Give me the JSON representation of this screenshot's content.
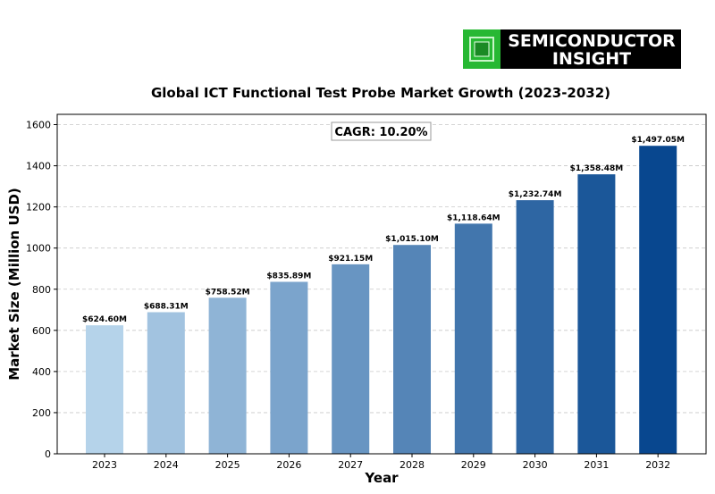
{
  "logo": {
    "line1": "SEMICONDUCTOR",
    "line2": "INSIGHT"
  },
  "annotation": {
    "cagr": "CAGR: 10.20%"
  },
  "colors": {
    "bar_start": "#b5d3ea",
    "bar_end": "#08478f",
    "grid": "#c8c8c8",
    "logo_bg": "#000000",
    "logo_chip": "#27b833"
  },
  "chart_data": {
    "type": "bar",
    "title": "Global ICT Functional Test Probe Market Growth (2023-2032)",
    "xlabel": "Year",
    "ylabel": "Market Size (Million USD)",
    "categories": [
      "2023",
      "2024",
      "2025",
      "2026",
      "2027",
      "2028",
      "2029",
      "2030",
      "2031",
      "2032"
    ],
    "values": [
      624.6,
      688.31,
      758.52,
      835.89,
      921.15,
      1015.1,
      1118.64,
      1232.74,
      1358.48,
      1497.05
    ],
    "data_labels": [
      "$624.60M",
      "$688.31M",
      "$758.52M",
      "$835.89M",
      "$921.15M",
      "$1,015.10M",
      "$1,118.64M",
      "$1,232.74M",
      "$1,358.48M",
      "$1,497.05M"
    ],
    "ylim": [
      0,
      1650
    ],
    "yticks": [
      0,
      200,
      400,
      600,
      800,
      1000,
      1200,
      1400,
      1600
    ],
    "grid": true,
    "grid_axis": "y",
    "grid_style": "dashed"
  }
}
